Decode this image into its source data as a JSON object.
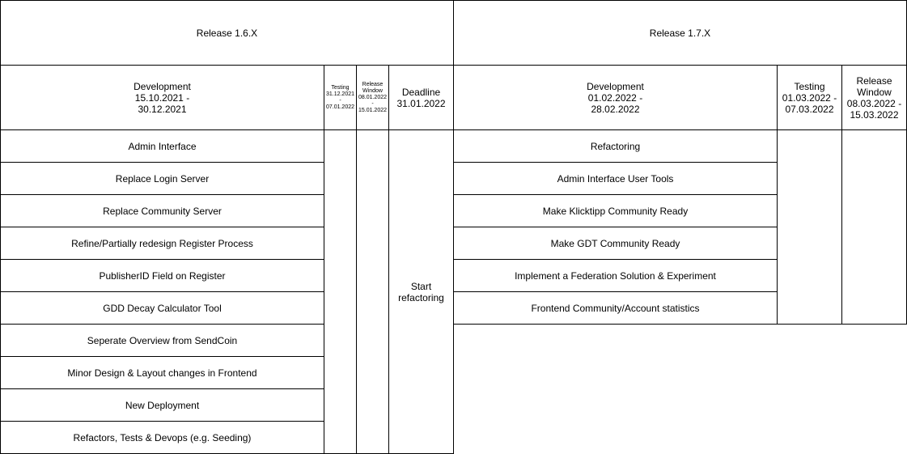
{
  "release16": {
    "title": "Release 1.6.X",
    "development": "Development\n15.10.2021 -\n30.12.2021",
    "testing": "Testing\n31.12.2021\n-\n07.01.2022",
    "release_window": "Release\nWindow\n08.01.2022\n-\n15.01.2022",
    "deadline": "Deadline\n31.01.2022",
    "deadline_task": "Start\nrefactoring",
    "tasks": [
      "Admin Interface",
      "Replace Login Server",
      "Replace Community Server",
      "Refine/Partially redesign Register Process",
      "PublisherID Field on Register",
      "GDD Decay Calculator Tool",
      "Seperate Overview from SendCoin",
      "Minor Design & Layout changes in Frontend",
      "New Deployment",
      "Refactors, Tests & Devops (e.g. Seeding)"
    ]
  },
  "release17": {
    "title": "Release 1.7.X",
    "development": "Development\n01.02.2022 -\n28.02.2022",
    "testing": "Testing\n01.03.2022 -\n07.03.2022",
    "release_window": "Release\nWindow\n08.03.2022 -\n15.03.2022",
    "tasks": [
      "Refactoring",
      "Admin Interface User Tools",
      "Make Klicktipp Community Ready",
      "Make GDT Community Ready",
      "Implement a Federation Solution & Experiment",
      "Frontend Community/Account statistics"
    ]
  }
}
